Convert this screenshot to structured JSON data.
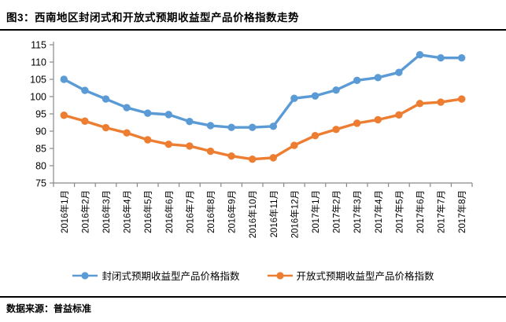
{
  "header": {
    "title": "图3：西南地区封闭式和开放式预期收益型产品价格指数走势"
  },
  "footer": {
    "source": "数据来源：普益标准"
  },
  "colors": {
    "closed_series": "#5B9BD5",
    "open_series": "#ED7D31",
    "axis": "#898989",
    "text": "#000000"
  },
  "chart_data": {
    "type": "line",
    "title": "西南地区封闭式和开放式预期收益型产品价格指数走势",
    "categories": [
      "2016年1月",
      "2016年2月",
      "2016年3月",
      "2016年4月",
      "2016年5月",
      "2016年6月",
      "2016年7月",
      "2016年8月",
      "2016年9月",
      "2016年10月",
      "2016年11月",
      "2016年12月",
      "2017年1月",
      "2017年2月",
      "2017年3月",
      "2017年4月",
      "2017年5月",
      "2017年6月",
      "2017年7月",
      "2017年8月"
    ],
    "series": [
      {
        "name": "封闭式预期收益型产品价格指数",
        "color": "#5B9BD5",
        "values": [
          105.0,
          101.8,
          99.3,
          96.8,
          95.2,
          94.8,
          92.8,
          91.6,
          91.1,
          91.1,
          91.4,
          99.5,
          100.2,
          101.9,
          104.7,
          105.5,
          107.0,
          112.1,
          111.2,
          111.2
        ]
      },
      {
        "name": "开放式预期收益型产品价格指数",
        "color": "#ED7D31",
        "values": [
          94.6,
          92.9,
          91.0,
          89.5,
          87.5,
          86.2,
          85.7,
          84.2,
          82.8,
          81.9,
          82.3,
          85.9,
          88.7,
          90.5,
          92.3,
          93.3,
          94.7,
          98.0,
          98.4,
          99.3
        ]
      }
    ],
    "xlabel": "",
    "ylabel": "",
    "ylim": [
      75,
      115
    ],
    "ytick_step": 5,
    "grid": false,
    "legend_position": "bottom",
    "x_tick_label_rotation": 90
  }
}
